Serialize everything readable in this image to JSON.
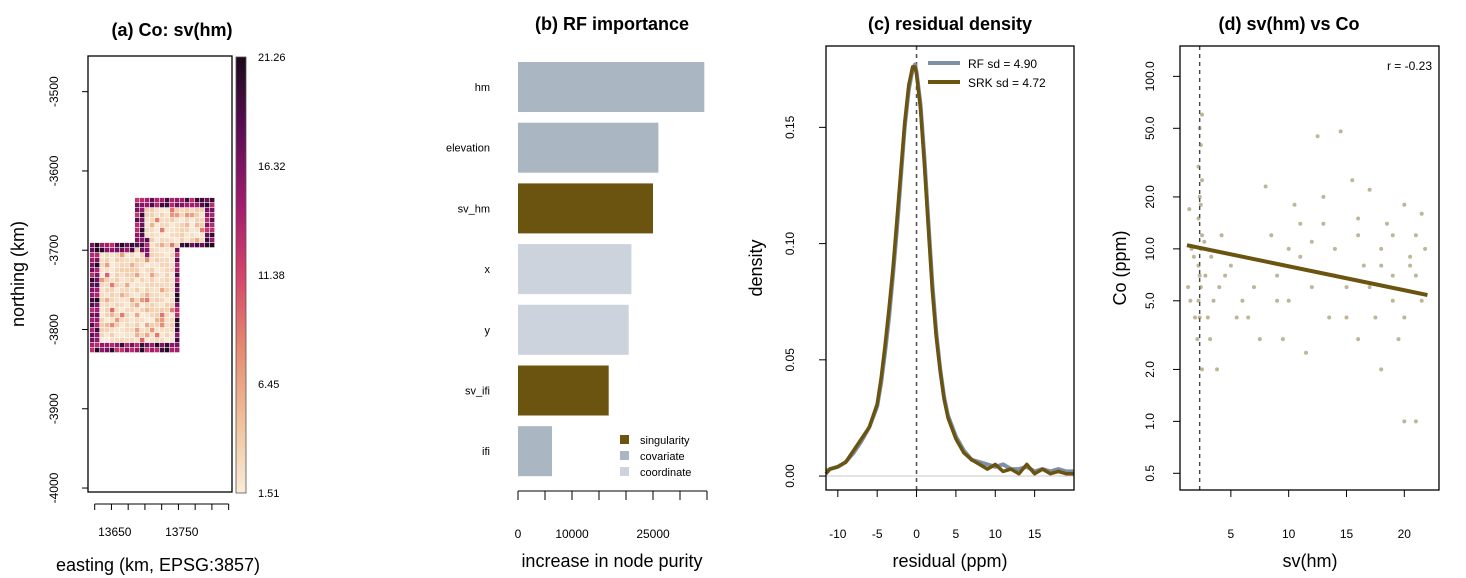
{
  "chart_data": [
    {
      "type": "heatmap",
      "title": "(a) Co: sv(hm)",
      "xlabel": "easting (km, EPSG:3857)",
      "ylabel": "northing (km)",
      "xticks": [
        "13650",
        "13750"
      ],
      "yticks": [
        "-3500",
        "-3600",
        "-3700",
        "-3800",
        "-3900",
        "-4000"
      ],
      "xlim": [
        13610,
        13825
      ],
      "ylim": [
        -4005,
        -3455
      ],
      "colorbar": {
        "ticks": [
          "21.26",
          "16.32",
          "11.38",
          "6.45",
          "1.51"
        ],
        "range": [
          1.51,
          21.26
        ],
        "colors": [
          "#faecd9",
          "#f0c09a",
          "#e58a70",
          "#d5446a",
          "#a01a6e",
          "#5a0d55",
          "#1c0a1c"
        ]
      }
    },
    {
      "type": "bar",
      "orientation": "horizontal",
      "title": "(b) RF importance",
      "xlabel": "increase in node purity",
      "categories": [
        "hm",
        "elevation",
        "sv_hm",
        "x",
        "y",
        "sv_ifi",
        "ifi"
      ],
      "values": [
        34500,
        26000,
        25000,
        21000,
        20500,
        16800,
        6300
      ],
      "groups": [
        "covariate",
        "covariate",
        "singularity",
        "coordinate",
        "coordinate",
        "singularity",
        "covariate"
      ],
      "xticks": [
        "0",
        "10000",
        "25000"
      ],
      "xlim": [
        0,
        35000
      ],
      "legend": {
        "position": "bottom-right",
        "entries": [
          {
            "name": "singularity",
            "color": "#6b540f"
          },
          {
            "name": "covariate",
            "color": "#aab6c2"
          },
          {
            "name": "coordinate",
            "color": "#ccd3dc"
          }
        ]
      }
    },
    {
      "type": "line",
      "title": "(c) residual density",
      "xlabel": "residual (ppm)",
      "ylabel": "density",
      "xlim": [
        -11.5,
        20
      ],
      "ylim": [
        -0.006,
        0.185
      ],
      "xticks": [
        "-10",
        "-5",
        "0",
        "5",
        "10",
        "15"
      ],
      "yticks": [
        "0.00",
        "0.05",
        "0.10",
        "0.15"
      ],
      "vline": 0,
      "legend": {
        "position": "top-right"
      },
      "series": [
        {
          "name": "RF   sd = 4.90",
          "color": "#7d90a6",
          "x": [
            -11.5,
            -11,
            -10,
            -9,
            -8,
            -7,
            -6,
            -5,
            -4.5,
            -4,
            -3.5,
            -3,
            -2.5,
            -2,
            -1.5,
            -1,
            -0.5,
            -0.2,
            0,
            0.5,
            1,
            1.5,
            2,
            2.5,
            3,
            3.5,
            4,
            5,
            6,
            7,
            8,
            9,
            10,
            11,
            12,
            13,
            14,
            15,
            16,
            17,
            18,
            19,
            20
          ],
          "y": [
            0.002,
            0.003,
            0.004,
            0.006,
            0.01,
            0.015,
            0.021,
            0.03,
            0.04,
            0.053,
            0.068,
            0.086,
            0.106,
            0.128,
            0.15,
            0.166,
            0.175,
            0.177,
            0.174,
            0.16,
            0.137,
            0.11,
            0.083,
            0.062,
            0.046,
            0.034,
            0.026,
            0.017,
            0.011,
            0.007,
            0.006,
            0.005,
            0.004,
            0.005,
            0.003,
            0.003,
            0.004,
            0.002,
            0.003,
            0.002,
            0.003,
            0.002,
            0.002
          ]
        },
        {
          "name": "SRK  sd = 4.72",
          "color": "#6b540f",
          "x": [
            -11.5,
            -11,
            -10,
            -9,
            -8,
            -7,
            -6,
            -5,
            -4.5,
            -4,
            -3.5,
            -3,
            -2.5,
            -2,
            -1.5,
            -1,
            -0.5,
            -0.2,
            0,
            0.5,
            1,
            1.5,
            2,
            2.5,
            3,
            3.5,
            4,
            5,
            6,
            7,
            8,
            9,
            10,
            11,
            12,
            13,
            14,
            15,
            16,
            17,
            18,
            19,
            20
          ],
          "y": [
            0.001,
            0.003,
            0.004,
            0.006,
            0.011,
            0.016,
            0.021,
            0.031,
            0.042,
            0.056,
            0.072,
            0.089,
            0.11,
            0.131,
            0.152,
            0.168,
            0.176,
            0.176,
            0.173,
            0.158,
            0.134,
            0.107,
            0.08,
            0.06,
            0.045,
            0.033,
            0.025,
            0.016,
            0.01,
            0.007,
            0.005,
            0.003,
            0.005,
            0.002,
            0.003,
            0.001,
            0.005,
            0.001,
            0.003,
            0.001,
            0.002,
            0.001,
            0.001
          ]
        }
      ]
    },
    {
      "type": "scatter",
      "title": "(d) sv(hm) vs Co",
      "xlabel": "sv(hm)",
      "ylabel": "Co (ppm)",
      "ylog": true,
      "xlim": [
        0.6,
        23
      ],
      "ylim": [
        0.4,
        150
      ],
      "xticks": [
        "5",
        "10",
        "15",
        "20"
      ],
      "yticks": [
        "0.5",
        "1.0",
        "2.0",
        "5.0",
        "10.0",
        "20.0",
        "50.0",
        "100.0"
      ],
      "vline": 2.3,
      "annotation": "r = -0.23",
      "fit": {
        "x": [
          1.2,
          22
        ],
        "y": [
          10.5,
          5.4
        ]
      },
      "points": [
        [
          2.1,
          3
        ],
        [
          2.2,
          5
        ],
        [
          2.3,
          7
        ],
        [
          2.4,
          10
        ],
        [
          2.5,
          12
        ],
        [
          2.2,
          15
        ],
        [
          2.4,
          18
        ],
        [
          2.3,
          20
        ],
        [
          2.5,
          25
        ],
        [
          2.2,
          30
        ],
        [
          2.4,
          40
        ],
        [
          2.3,
          50
        ],
        [
          2.5,
          60
        ],
        [
          2.2,
          8
        ],
        [
          2.4,
          6
        ],
        [
          2.3,
          4
        ],
        [
          2.5,
          2
        ],
        [
          1.8,
          9
        ],
        [
          2.7,
          11
        ],
        [
          1.5,
          5
        ],
        [
          3,
          4
        ],
        [
          3.5,
          5
        ],
        [
          4,
          6
        ],
        [
          4.5,
          7
        ],
        [
          5,
          8
        ],
        [
          6,
          5
        ],
        [
          7,
          6
        ],
        [
          8,
          23
        ],
        [
          8.5,
          12
        ],
        [
          9,
          7
        ],
        [
          10,
          5
        ],
        [
          10.5,
          18
        ],
        [
          11,
          9
        ],
        [
          12,
          11
        ],
        [
          12.5,
          45
        ],
        [
          13,
          14
        ],
        [
          14,
          7
        ],
        [
          14.5,
          48
        ],
        [
          15,
          6
        ],
        [
          15.5,
          25
        ],
        [
          16,
          12
        ],
        [
          16.5,
          8
        ],
        [
          17,
          22
        ],
        [
          17.5,
          4
        ],
        [
          18,
          10
        ],
        [
          18.5,
          14
        ],
        [
          19,
          7
        ],
        [
          19.5,
          3
        ],
        [
          20,
          18
        ],
        [
          20.5,
          9
        ],
        [
          21,
          12
        ],
        [
          21.5,
          5
        ],
        [
          20,
          1
        ],
        [
          21,
          1
        ],
        [
          3.2,
          3
        ],
        [
          3.8,
          2
        ],
        [
          6.5,
          4
        ],
        [
          9.5,
          3
        ],
        [
          11.5,
          2.5
        ],
        [
          13.5,
          4
        ],
        [
          16,
          3
        ],
        [
          18,
          2
        ],
        [
          19,
          5
        ],
        [
          20.5,
          8
        ],
        [
          21.5,
          16
        ],
        [
          1.3,
          6
        ],
        [
          1.4,
          17
        ],
        [
          1.6,
          10
        ],
        [
          1.9,
          4
        ],
        [
          2.8,
          7
        ],
        [
          3.3,
          9
        ],
        [
          4.2,
          12
        ],
        [
          5.5,
          4
        ],
        [
          7.5,
          3
        ],
        [
          9,
          5
        ],
        [
          10,
          10
        ],
        [
          11,
          14
        ],
        [
          12,
          6
        ],
        [
          13,
          20
        ],
        [
          14,
          10
        ],
        [
          15,
          4
        ],
        [
          16,
          15
        ],
        [
          17,
          6
        ],
        [
          18,
          8
        ],
        [
          19,
          12
        ],
        [
          20,
          4
        ],
        [
          21,
          7
        ],
        [
          21.8,
          10
        ]
      ]
    }
  ]
}
